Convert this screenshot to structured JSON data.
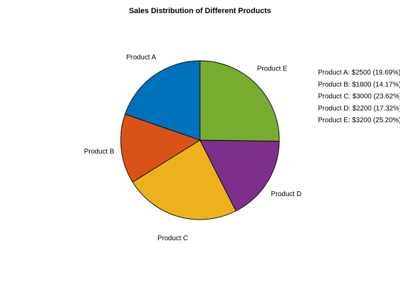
{
  "chart_data": {
    "type": "pie",
    "title": "Sales Distribution of Different Products",
    "categories": [
      "Product A",
      "Product B",
      "Product C",
      "Product D",
      "Product E"
    ],
    "values": [
      2500,
      1800,
      3000,
      2200,
      3200
    ],
    "colors": [
      "#0072BD",
      "#D95319",
      "#EDB120",
      "#7E2F8E",
      "#77AC30"
    ],
    "legend_entries": [
      "Product A: $2500 (19.69%)",
      "Product B: $1800 (14.17%)",
      "Product C: $3000 (23.62%)",
      "Product D: $2200 (17.32%)",
      "Product E: $3200 (25.20%)"
    ],
    "legend_position": "right",
    "start": "top",
    "direction": "counterclockwise"
  }
}
